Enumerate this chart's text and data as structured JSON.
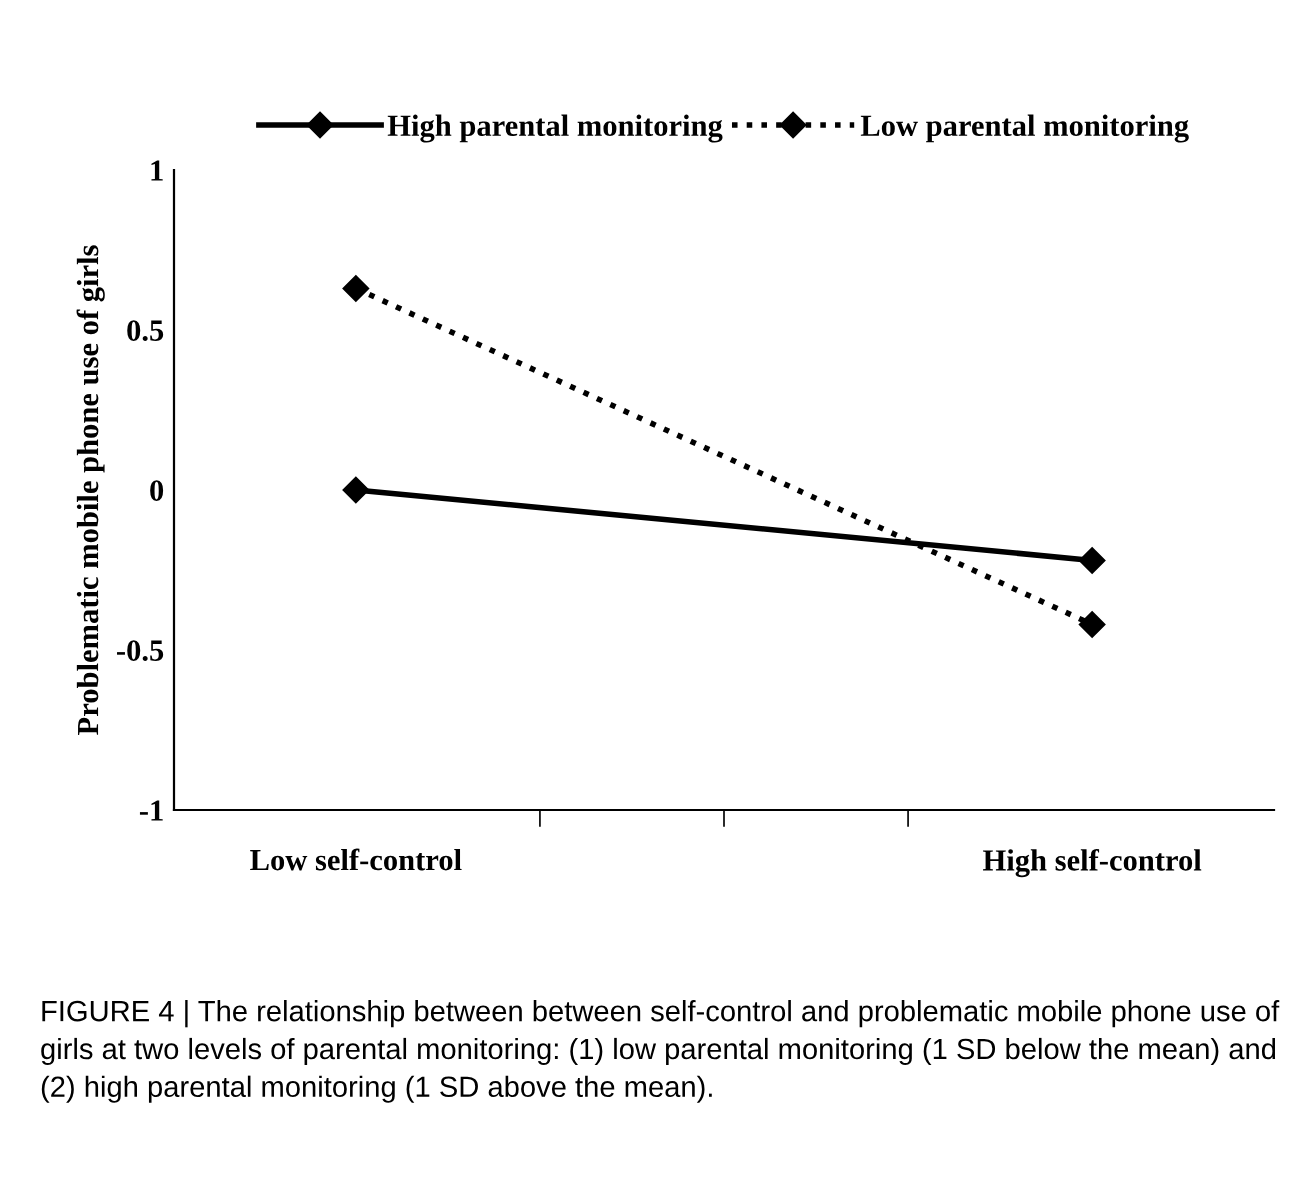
{
  "chart_data": {
    "type": "line",
    "ylabel": "Problematic mobile phone use of girls",
    "categories": [
      "Low self-control",
      "High self-control"
    ],
    "series": [
      {
        "name": "High parental monitoring",
        "color": "#000000",
        "values": [
          0,
          -0.22
        ],
        "line_style": "solid"
      },
      {
        "name": "Low parental monitoring",
        "color": "#000000",
        "values": [
          0.63,
          -0.42
        ],
        "line_style": "dotted"
      }
    ],
    "ylim": [
      -1,
      1
    ],
    "yticks": [
      {
        "value": -1,
        "label": "-1"
      },
      {
        "value": -0.5,
        "label": "-0.5"
      },
      0,
      0.5,
      1
    ],
    "grid": false,
    "legend": "top",
    "marker": "diamond",
    "annotations": [
      "FIGURE 4 | The relationship between between self-control and problematic mobile phone use of girls at two levels of parental monitoring: (1) low parental monitoring (1 SD below the mean) and (2) high parental monitoring (1 SD above the mean)."
    ]
  }
}
